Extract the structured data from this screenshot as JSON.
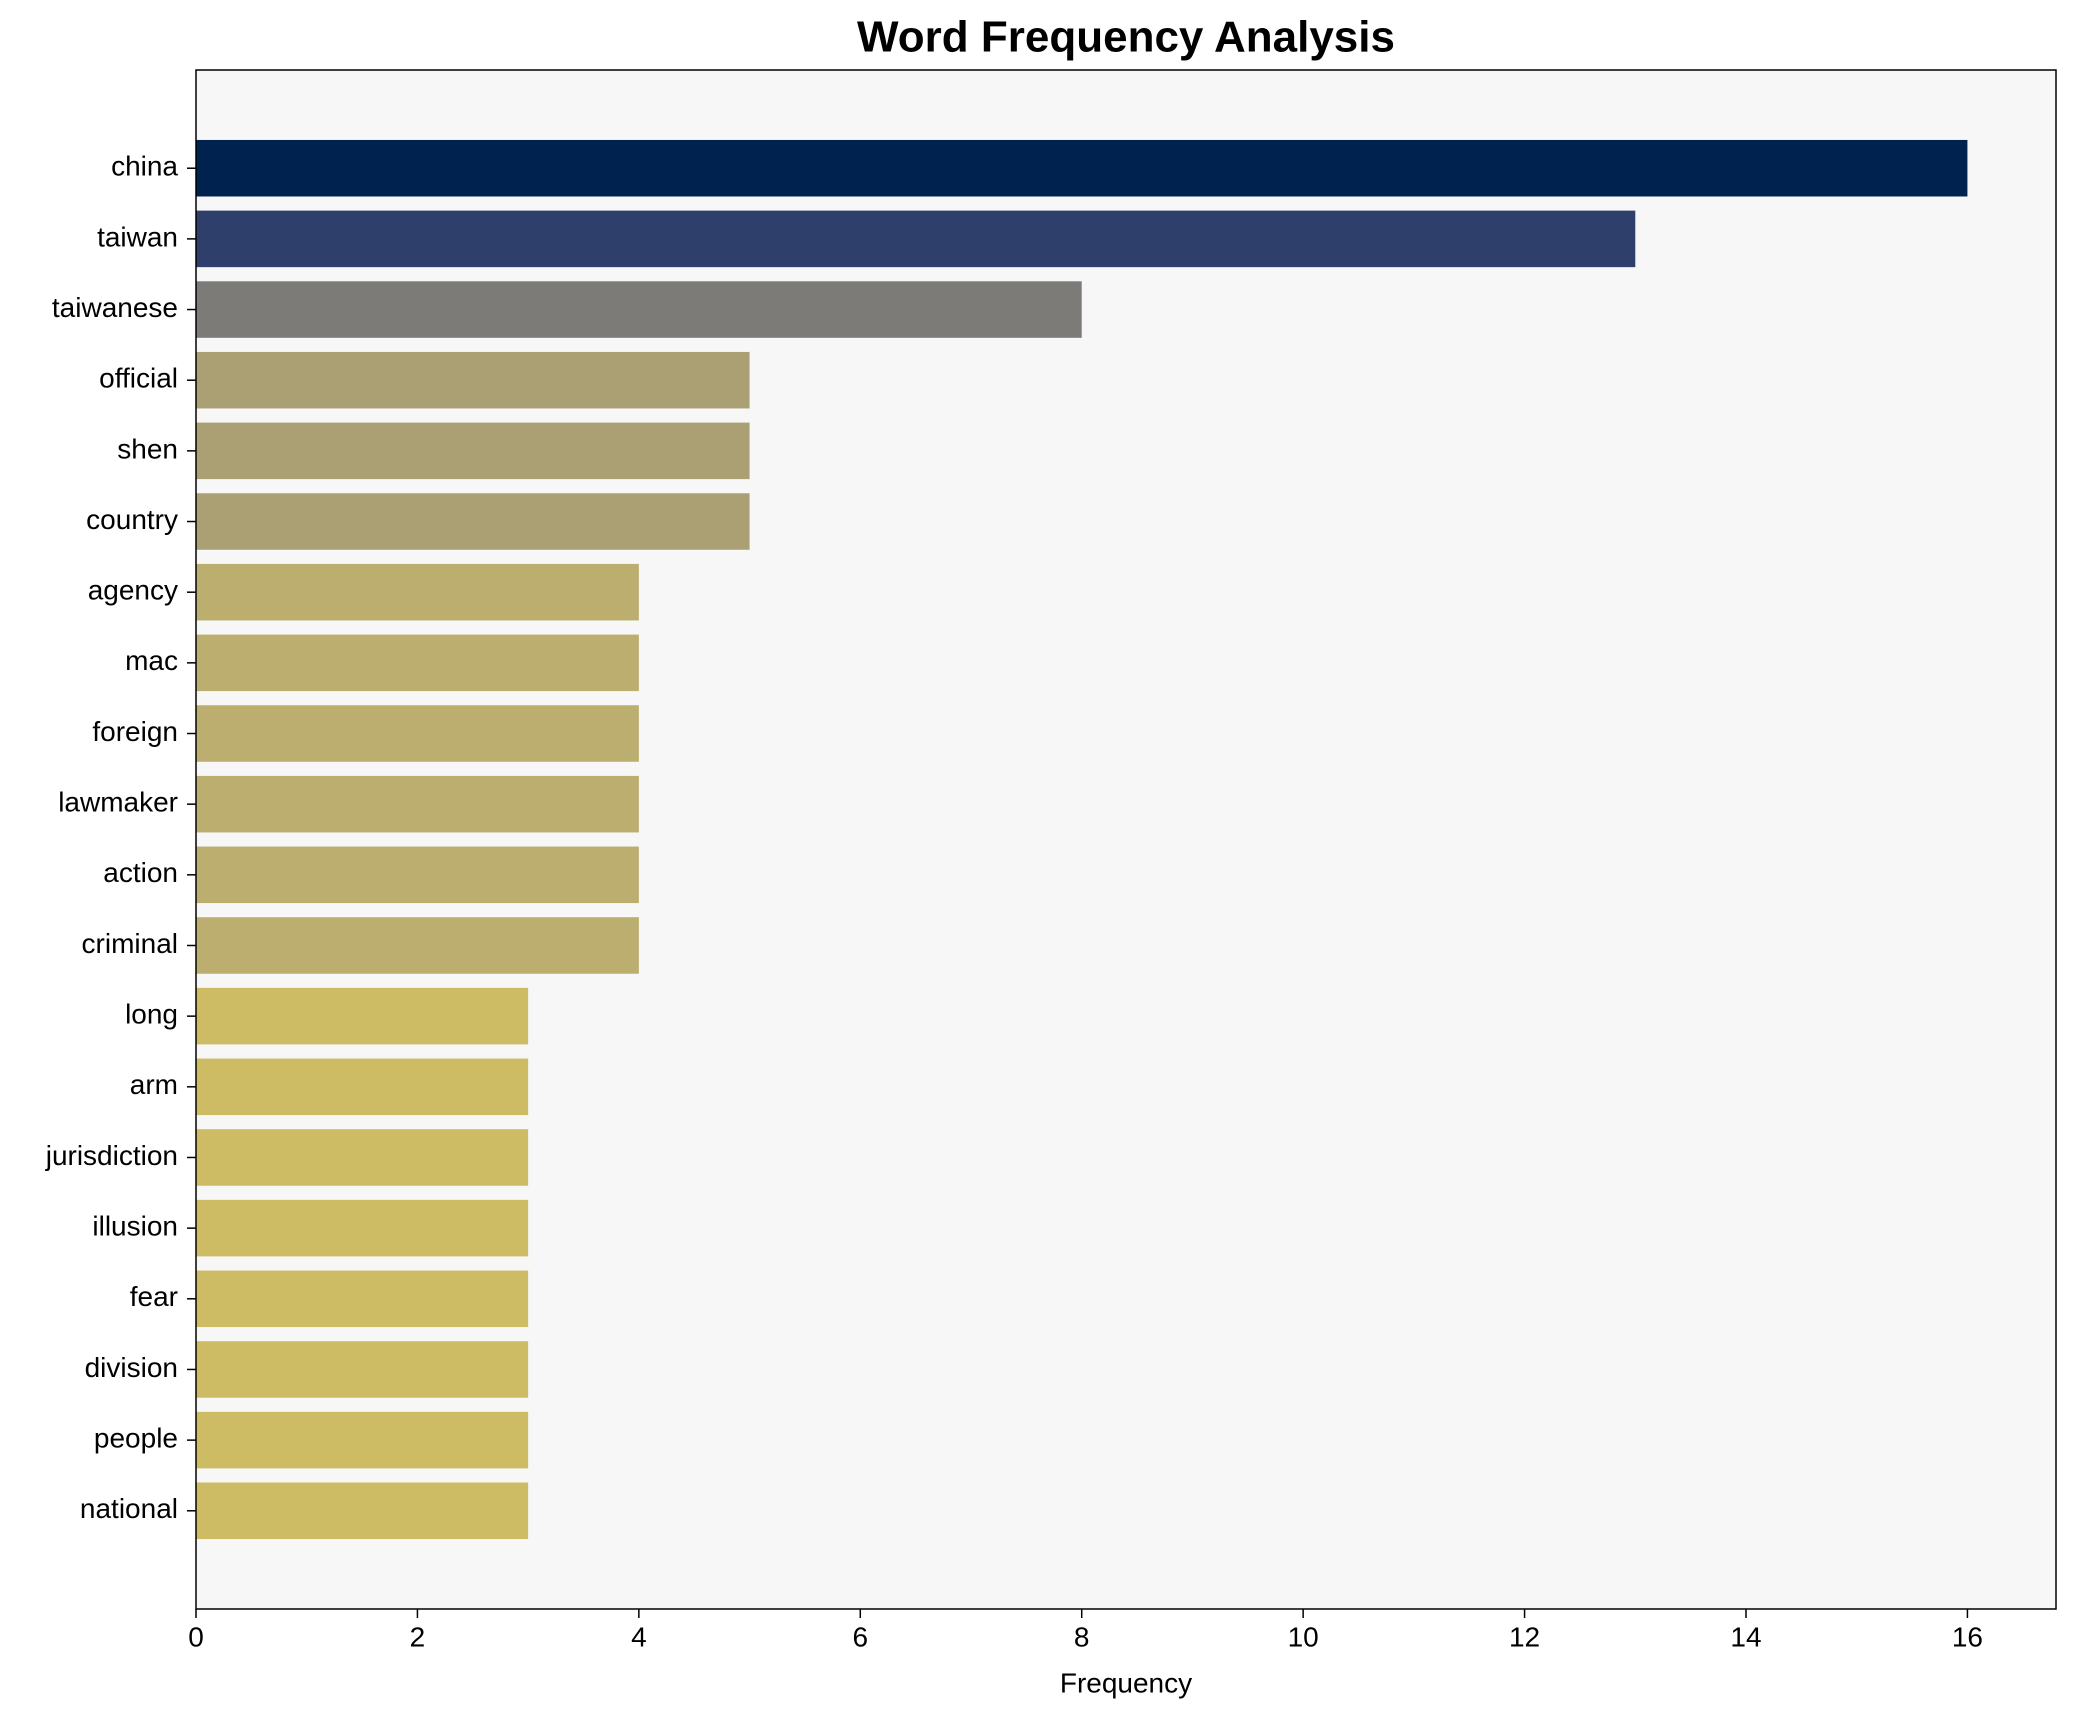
{
  "chart_data": {
    "type": "barh",
    "title": "Word Frequency Analysis",
    "xlabel": "Frequency",
    "categories": [
      "china",
      "taiwan",
      "taiwanese",
      "official",
      "shen",
      "country",
      "agency",
      "mac",
      "foreign",
      "lawmaker",
      "action",
      "criminal",
      "long",
      "arm",
      "jurisdiction",
      "illusion",
      "fear",
      "division",
      "people",
      "national"
    ],
    "values": [
      16,
      13,
      8,
      5,
      5,
      5,
      4,
      4,
      4,
      4,
      4,
      4,
      3,
      3,
      3,
      3,
      3,
      3,
      3,
      3
    ],
    "colors": [
      "#00224e",
      "#2f3f6b",
      "#7c7b78",
      "#aba074",
      "#aba074",
      "#aba074",
      "#bcae6e",
      "#bcae6e",
      "#bcae6e",
      "#bcae6e",
      "#bcae6e",
      "#bcae6e",
      "#cdbc63",
      "#cdbc63",
      "#cdbc63",
      "#cdbc63",
      "#cdbc63",
      "#cdbc63",
      "#cdbc63",
      "#cdbc63"
    ],
    "xlim": [
      0,
      16.8
    ],
    "xticks": [
      0,
      2,
      4,
      6,
      8,
      10,
      12,
      14,
      16
    ],
    "background": "#f7f7f7"
  }
}
